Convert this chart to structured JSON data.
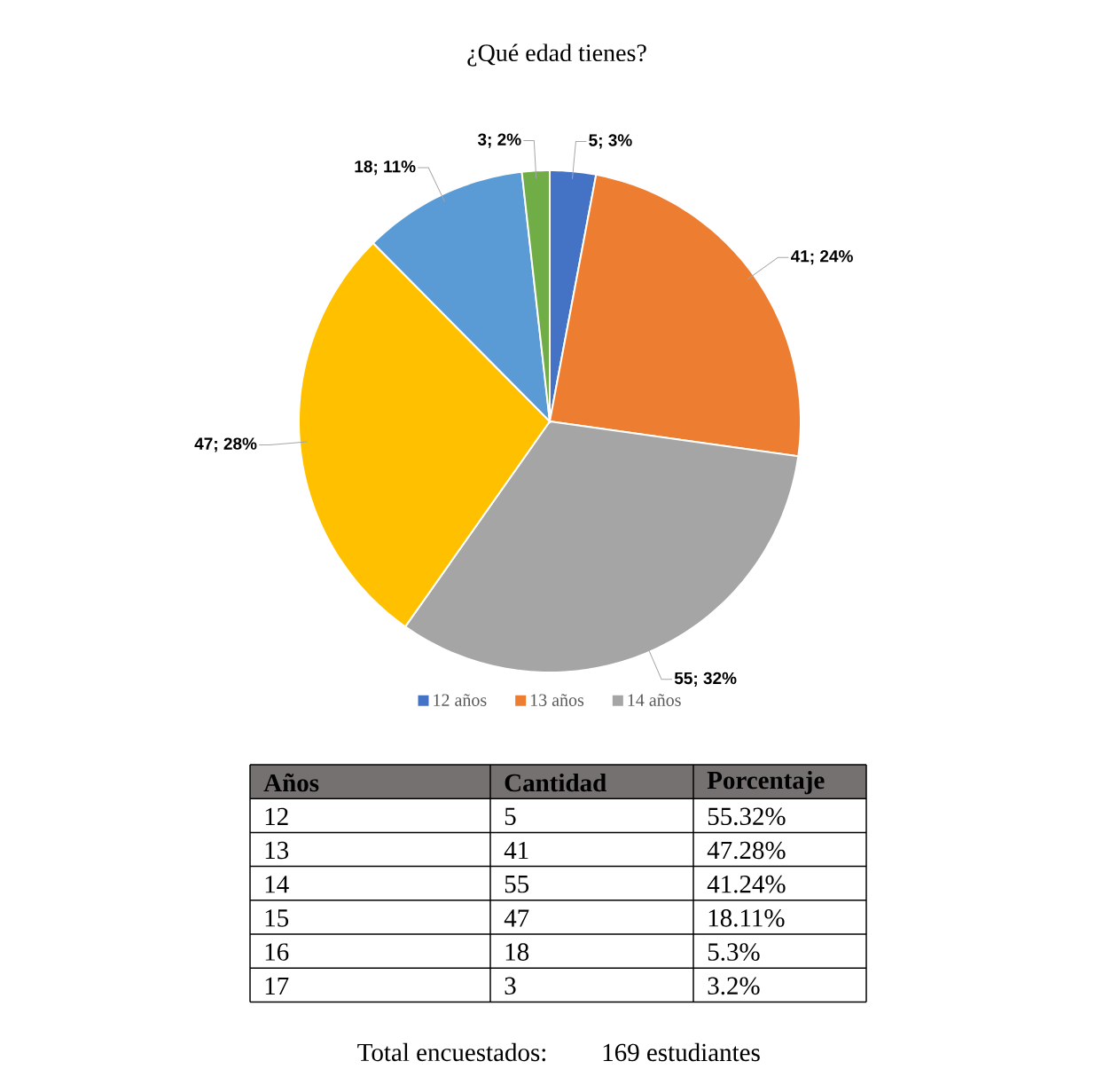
{
  "chart_data": {
    "type": "pie",
    "title": "¿Qué edad tienes?",
    "categories": [
      "12 años",
      "13 años",
      "14 años",
      null,
      null,
      null
    ],
    "values": [
      5,
      41,
      55,
      47,
      18,
      3
    ],
    "colors": [
      "#4472c4",
      "#ed7d31",
      "#a5a5a5",
      "#ffc000",
      "#5b9bd5",
      "#70ad47"
    ],
    "value_labels": [
      "5; 3%",
      "41; 24%",
      "55; 32%",
      "47; 28%",
      "18; 11%",
      "3; 2%"
    ],
    "legend": "bottom",
    "annotations": [
      "Años",
      "Cantidad",
      "Porcentaje",
      "12",
      "5",
      "55.32%",
      "13",
      "41",
      "47.28%",
      "14",
      "55",
      "41.24%",
      "15",
      "47",
      "18.11%",
      "16",
      "18",
      "5.3%",
      "17",
      "3",
      "3.2%",
      "Total encuestados:",
      "169 estudiantes"
    ]
  }
}
